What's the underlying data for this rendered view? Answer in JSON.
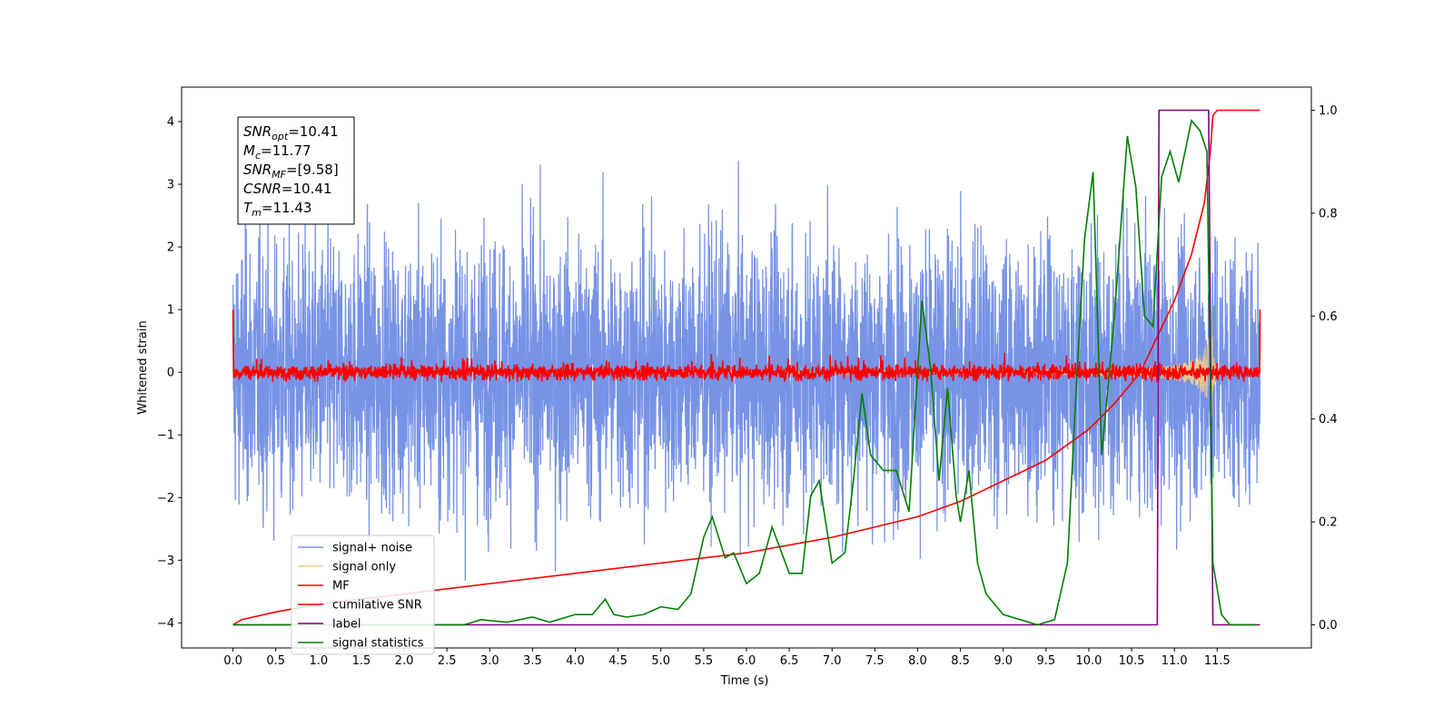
{
  "chart_data": {
    "type": "line",
    "xlabel": "Time (s)",
    "ylabel": "Whitened strain",
    "xlim": [
      -0.6,
      12.6
    ],
    "ylim": [
      -4.4,
      4.55
    ],
    "y2lim": [
      -0.045,
      1.045
    ],
    "grid": false,
    "legend_placement": "lower-left",
    "x_ticks": [
      "0.0",
      "0.5",
      "1.0",
      "1.5",
      "2.0",
      "2.5",
      "3.0",
      "3.5",
      "4.0",
      "4.5",
      "5.0",
      "5.5",
      "6.0",
      "6.5",
      "7.0",
      "7.5",
      "8.0",
      "8.5",
      "9.0",
      "9.5",
      "10.0",
      "10.5",
      "11.0",
      "11.5"
    ],
    "y_ticks": [
      "4",
      "3",
      "2",
      "1",
      "0",
      "−1",
      "−2",
      "−3",
      "−4"
    ],
    "y2_ticks": [
      "1.0",
      "0.8",
      "0.6",
      "0.4",
      "0.2",
      "0.0"
    ],
    "annotation": [
      {
        "base": "SNR",
        "sub": "opt",
        "value": "=10.41"
      },
      {
        "base": "M",
        "sub": "c",
        "value": "=11.77"
      },
      {
        "base": "SNR",
        "sub": "MF",
        "value": "=[9.58]"
      },
      {
        "base": "CSNR",
        "sub": "",
        "value": "=10.41"
      },
      {
        "base": "T",
        "sub": "m",
        "value": "=11.43"
      }
    ],
    "series": [
      {
        "name": "signal+ noise",
        "color": "#7793e6",
        "axis": "left",
        "kind": "noise",
        "amplitude_range": [
          -3.9,
          4.15
        ],
        "x_range": [
          0.0,
          12.0
        ]
      },
      {
        "name": "signal only",
        "color": "#f5cf7f",
        "axis": "left",
        "kind": "chirp",
        "x_range": [
          0.0,
          11.5
        ],
        "peak_amplitude": 1.0,
        "merger_time": 11.43
      },
      {
        "name": "MF",
        "color": "#ff0000",
        "axis": "left",
        "kind": "noise",
        "amplitude_range": [
          -0.15,
          0.35
        ],
        "x_range": [
          0.0,
          12.0
        ],
        "endpoints": [
          1.0,
          1.0
        ]
      },
      {
        "name": "cumilative SNR",
        "color": "#ff0000",
        "axis": "right",
        "x": [
          0.0,
          0.1,
          0.5,
          1.0,
          2.0,
          3.0,
          4.0,
          5.0,
          6.0,
          7.0,
          7.5,
          8.0,
          8.5,
          9.0,
          9.5,
          10.0,
          10.3,
          10.6,
          10.8,
          11.0,
          11.2,
          11.35,
          11.42,
          11.45,
          11.5,
          12.0
        ],
        "y": [
          0.0,
          0.01,
          0.025,
          0.04,
          0.06,
          0.08,
          0.1,
          0.12,
          0.14,
          0.17,
          0.19,
          0.21,
          0.24,
          0.28,
          0.32,
          0.38,
          0.43,
          0.49,
          0.56,
          0.63,
          0.72,
          0.82,
          0.92,
          0.99,
          1.0,
          1.0
        ]
      },
      {
        "name": "label",
        "color": "#800080",
        "axis": "right",
        "x": [
          0.0,
          10.8,
          10.82,
          11.4,
          11.45,
          12.0
        ],
        "y": [
          0.0,
          0.0,
          1.0,
          1.0,
          0.0,
          0.0
        ]
      },
      {
        "name": "signal statistics",
        "color": "#008000",
        "axis": "right",
        "x": [
          0.0,
          1.0,
          2.0,
          2.7,
          2.9,
          3.2,
          3.5,
          3.7,
          4.0,
          4.2,
          4.35,
          4.45,
          4.6,
          4.8,
          5.0,
          5.2,
          5.35,
          5.5,
          5.6,
          5.75,
          5.85,
          6.0,
          6.15,
          6.3,
          6.5,
          6.65,
          6.75,
          6.85,
          7.0,
          7.15,
          7.25,
          7.35,
          7.45,
          7.6,
          7.75,
          7.9,
          8.05,
          8.15,
          8.25,
          8.35,
          8.45,
          8.5,
          8.6,
          8.7,
          8.8,
          9.0,
          9.2,
          9.4,
          9.6,
          9.75,
          9.85,
          9.95,
          10.05,
          10.15,
          10.3,
          10.45,
          10.55,
          10.65,
          10.75,
          10.85,
          10.95,
          11.05,
          11.2,
          11.3,
          11.38,
          11.45,
          11.55,
          11.65,
          11.75,
          11.95
        ],
        "y": [
          0.0,
          0.0,
          0.0,
          0.0,
          0.01,
          0.005,
          0.015,
          0.005,
          0.02,
          0.02,
          0.05,
          0.02,
          0.015,
          0.02,
          0.035,
          0.03,
          0.06,
          0.17,
          0.21,
          0.13,
          0.14,
          0.08,
          0.1,
          0.19,
          0.1,
          0.1,
          0.25,
          0.28,
          0.12,
          0.14,
          0.28,
          0.45,
          0.33,
          0.3,
          0.3,
          0.22,
          0.63,
          0.5,
          0.28,
          0.46,
          0.25,
          0.2,
          0.3,
          0.12,
          0.06,
          0.02,
          0.01,
          0.0,
          0.01,
          0.12,
          0.45,
          0.75,
          0.88,
          0.33,
          0.6,
          0.95,
          0.85,
          0.6,
          0.58,
          0.87,
          0.92,
          0.86,
          0.98,
          0.96,
          0.92,
          0.12,
          0.02,
          0.0,
          0.0,
          0.0
        ]
      }
    ]
  }
}
